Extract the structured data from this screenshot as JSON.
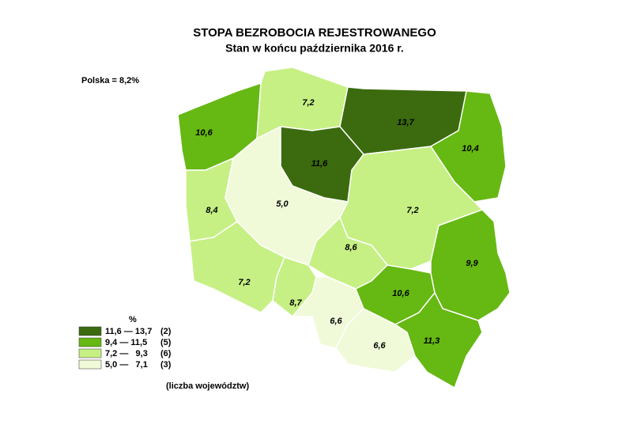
{
  "header": {
    "title": "STOPA BEZROBOCIA REJESTROWANEGO",
    "subtitle": "Stan w końcu października 2016 r."
  },
  "note": "Polska = 8,2%",
  "regions": [
    {
      "label": "10,6",
      "color": "#66b812"
    },
    {
      "label": "7,2",
      "color": "#c6f084"
    },
    {
      "label": "13,7",
      "color": "#3b6b0e"
    },
    {
      "label": "10,4",
      "color": "#66b812"
    },
    {
      "label": "11,6",
      "color": "#3b6b0e"
    },
    {
      "label": "8,4",
      "color": "#c6f084"
    },
    {
      "label": "5,0",
      "color": "#f0fad8"
    },
    {
      "label": "7,2",
      "color": "#c6f084"
    },
    {
      "label": "8,6",
      "color": "#c6f084"
    },
    {
      "label": "7,2",
      "color": "#c6f084"
    },
    {
      "label": "8,7",
      "color": "#c6f084"
    },
    {
      "label": "6,6",
      "color": "#f0fad8"
    },
    {
      "label": "10,6",
      "color": "#66b812"
    },
    {
      "label": "9,9",
      "color": "#66b812"
    },
    {
      "label": "6,6",
      "color": "#f0fad8"
    },
    {
      "label": "11,3",
      "color": "#66b812"
    }
  ],
  "legend": {
    "title": "%",
    "items": [
      {
        "range": "11,6 — 13,7",
        "count": "(2)",
        "color": "#3b6b0e"
      },
      {
        "range": "9,4 — 11,5",
        "count": "(5)",
        "color": "#66b812"
      },
      {
        "range": "7,2 —   9,3",
        "count": "(6)",
        "color": "#c6f084"
      },
      {
        "range": "5,0 —   7,1",
        "count": "(3)",
        "color": "#f0fad8"
      }
    ],
    "footer": "(liczba województw)"
  }
}
